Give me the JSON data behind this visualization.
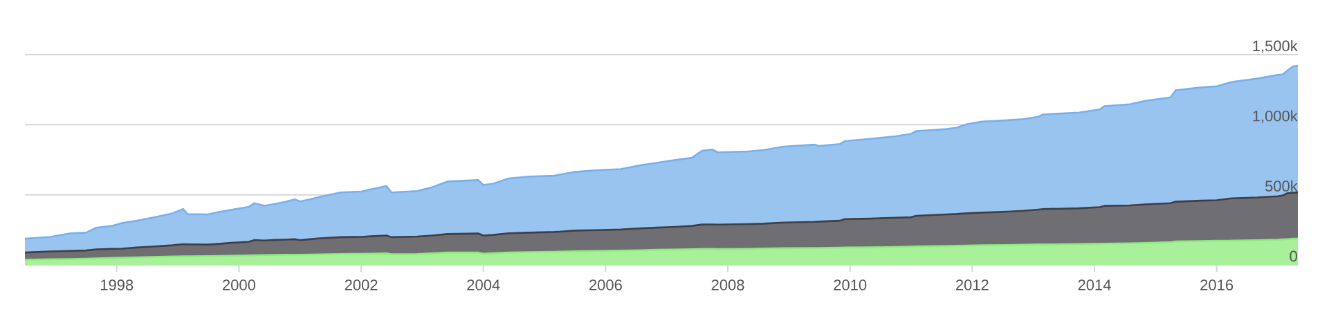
{
  "chart_data": {
    "type": "area",
    "stacked": true,
    "x": [
      "1996-07",
      "1996-12",
      "1997-04",
      "1997-07",
      "1997-09",
      "1997-12",
      "1998-02",
      "1998-05",
      "1998-08",
      "1998-12",
      "1999-02",
      "1999-03",
      "1999-07",
      "1999-09",
      "1999-11",
      "2000-03",
      "2000-04",
      "2000-06",
      "2000-08",
      "2000-10",
      "2000-12",
      "2001-01",
      "2001-03",
      "2001-05",
      "2001-09",
      "2002-01",
      "2002-03",
      "2002-06",
      "2002-07",
      "2002-12",
      "2003-03",
      "2003-06",
      "2003-12",
      "2004-01",
      "2004-03",
      "2004-06",
      "2004-10",
      "2005-03",
      "2005-04",
      "2005-07",
      "2005-11",
      "2006-04",
      "2006-08",
      "2006-11",
      "2007-02",
      "2007-06",
      "2007-08",
      "2007-10",
      "2007-11",
      "2008-05",
      "2008-08",
      "2008-12",
      "2009-06",
      "2009-07",
      "2009-11",
      "2009-12",
      "2010-05",
      "2010-10",
      "2011-01",
      "2011-02",
      "2011-08",
      "2011-10",
      "2011-12",
      "2012-03",
      "2012-08",
      "2012-11",
      "2013-02",
      "2013-03",
      "2013-10",
      "2014-02",
      "2014-03",
      "2014-08",
      "2014-11",
      "2015-04",
      "2015-05",
      "2015-10",
      "2016-01",
      "2016-04",
      "2016-09",
      "2017-01",
      "2017-02",
      "2017-03",
      "2017-04",
      "2017-05"
    ],
    "series": [
      {
        "color": "#a9f09b",
        "values": [
          37000,
          40000,
          42000,
          44000,
          46000,
          50000,
          51000,
          54000,
          57000,
          60000,
          61000,
          61000,
          63000,
          64000,
          65000,
          68000,
          69000,
          70000,
          71000,
          72000,
          73000,
          73000,
          74000,
          75000,
          78000,
          79000,
          80000,
          82000,
          76000,
          78000,
          82000,
          88000,
          88000,
          80000,
          83000,
          88000,
          91000,
          94000,
          95000,
          97000,
          99000,
          102000,
          105000,
          108000,
          109000,
          112000,
          114000,
          114000,
          113000,
          115000,
          117000,
          119000,
          121000,
          121000,
          123000,
          124000,
          125000,
          128000,
          131000,
          132000,
          135000,
          136000,
          138000,
          140000,
          142000,
          144000,
          146000,
          146000,
          149000,
          151000,
          152000,
          154000,
          156000,
          163000,
          167000,
          170000,
          172000,
          173000,
          176000,
          180000,
          182000,
          184000,
          187000,
          189000
        ]
      },
      {
        "color": "#6f6e73",
        "values": [
          51000,
          56000,
          58000,
          59000,
          65000,
          64000,
          65000,
          70000,
          74000,
          80000,
          87000,
          86000,
          82000,
          86000,
          91000,
          97000,
          108000,
          104000,
          107000,
          108000,
          110000,
          103000,
          109000,
          115000,
          120000,
          121000,
          124000,
          128000,
          122000,
          124000,
          128000,
          132000,
          136000,
          130000,
          131000,
          138000,
          139000,
          141000,
          142000,
          148000,
          149000,
          150000,
          156000,
          158000,
          161000,
          166000,
          174000,
          174000,
          174000,
          176000,
          177000,
          183000,
          186000,
          188000,
          192000,
          203000,
          205000,
          209000,
          209000,
          218000,
          225000,
          227000,
          230000,
          233000,
          238000,
          242000,
          249000,
          252000,
          255000,
          261000,
          269000,
          270000,
          276000,
          277000,
          284000,
          288000,
          289000,
          302000,
          305000,
          310000,
          314000,
          328000,
          328000,
          327000
        ]
      },
      {
        "color": "#9ac4f0",
        "values": [
          99000,
          104000,
          126000,
          127000,
          154000,
          164000,
          182000,
          191000,
          206000,
          228000,
          251000,
          215000,
          215000,
          227000,
          233000,
          249000,
          263000,
          248000,
          256000,
          269000,
          284000,
          277000,
          284000,
          296000,
          319000,
          323000,
          335000,
          352000,
          319000,
          325000,
          344000,
          375000,
          381000,
          360000,
          366000,
          391000,
          400000,
          401000,
          407000,
          418000,
          427000,
          431000,
          451000,
          462000,
          475000,
          486000,
          527000,
          535000,
          516000,
          518000,
          525000,
          542000,
          551000,
          539000,
          547000,
          556000,
          569000,
          581000,
          595000,
          605000,
          609000,
          616000,
          636000,
          649000,
          652000,
          654000,
          662000,
          675000,
          683000,
          697000,
          711000,
          722000,
          738000,
          755000,
          795000,
          808000,
          813000,
          830000,
          848000,
          865000,
          863000,
          876000,
          901000,
          904000
        ]
      }
    ],
    "xlim": [
      "1996-07",
      "2017-05"
    ],
    "xticks": [
      "1998",
      "2000",
      "2002",
      "2004",
      "2006",
      "2008",
      "2010",
      "2012",
      "2014",
      "2016"
    ],
    "ylim": [
      0,
      1500000
    ],
    "yticks": [
      0,
      {
        "value": 500000,
        "label": "500k"
      },
      {
        "value": 1000000,
        "label": "1,000k"
      },
      {
        "value": 1500000,
        "label": "1,500k"
      }
    ],
    "grid": "y"
  }
}
